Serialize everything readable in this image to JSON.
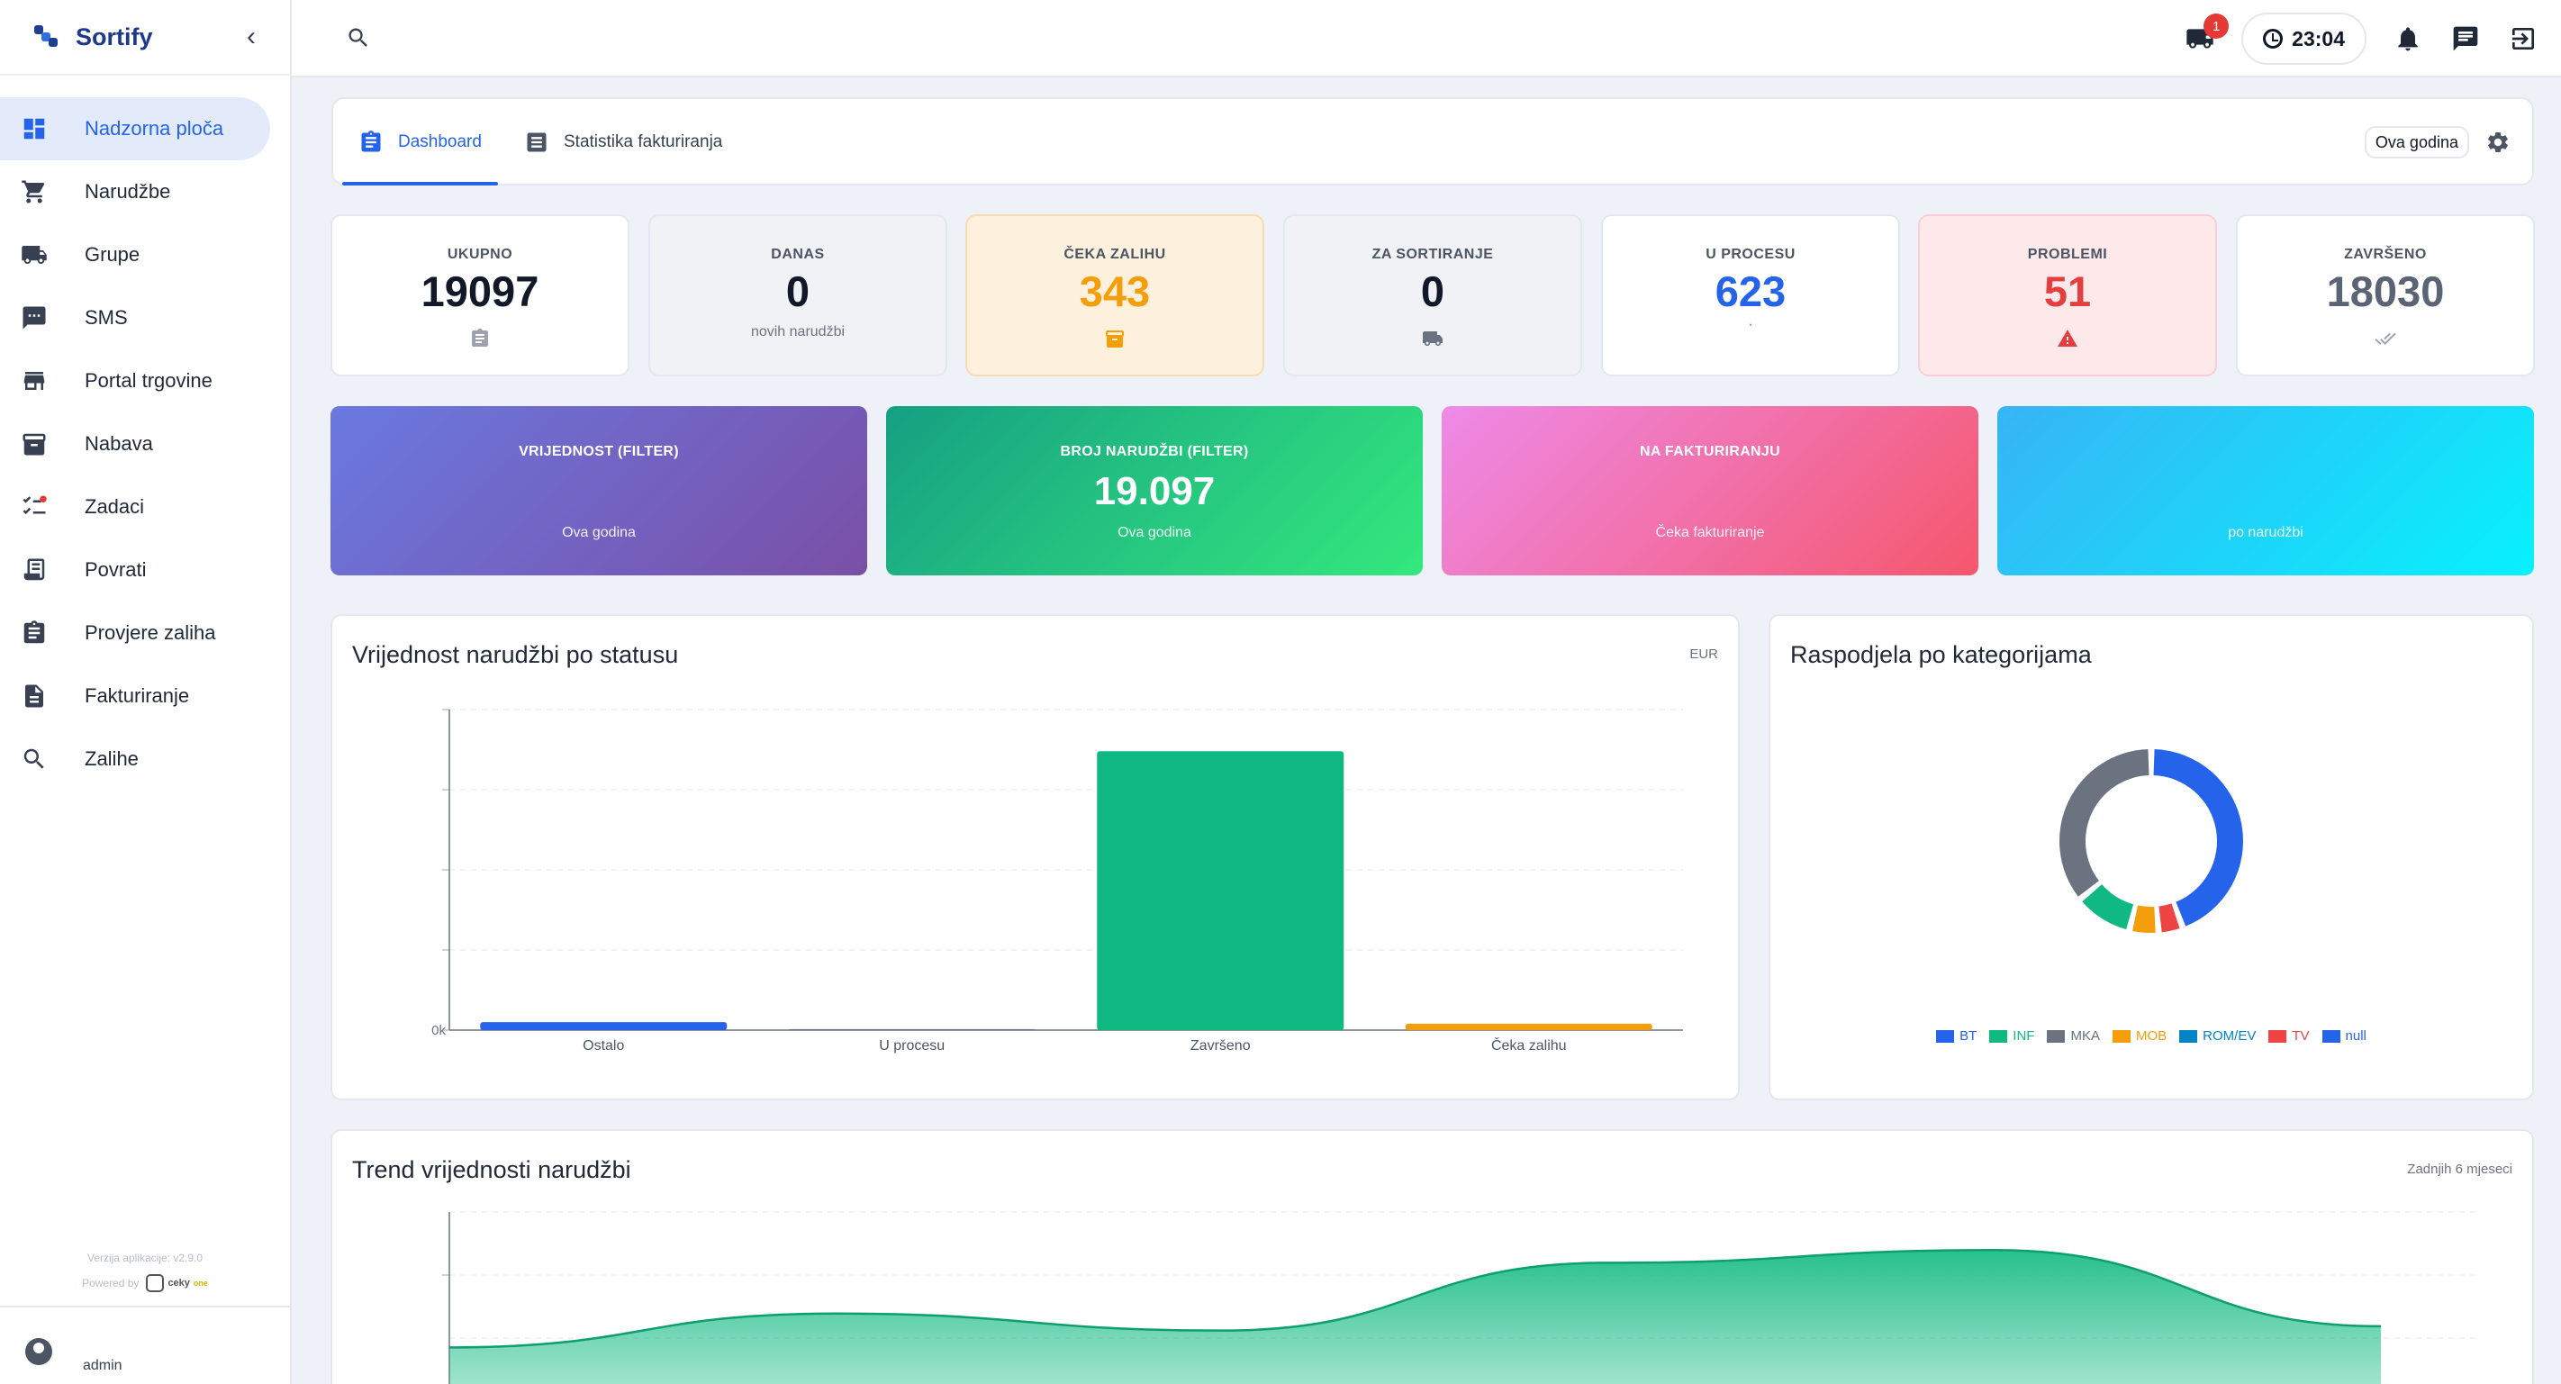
{
  "app": {
    "name": "Sortify",
    "version": "Verzija aplikacije: v2.9.0",
    "powered_by": "Powered by",
    "powered_brand": "ceky",
    "powered_brand_suffix": "one"
  },
  "sidebar": {
    "items": [
      {
        "label": "Nadzorna ploča",
        "icon": "dashboard-icon",
        "active": true
      },
      {
        "label": "Narudžbe",
        "icon": "cart-icon"
      },
      {
        "label": "Grupe",
        "icon": "truck-icon"
      },
      {
        "label": "SMS",
        "icon": "sms-icon"
      },
      {
        "label": "Portal trgovine",
        "icon": "store-icon"
      },
      {
        "label": "Nabava",
        "icon": "archive-icon"
      },
      {
        "label": "Zadaci",
        "icon": "tasks-icon"
      },
      {
        "label": "Povrati",
        "icon": "receipt-icon"
      },
      {
        "label": "Provjere zaliha",
        "icon": "clipboard-icon"
      },
      {
        "label": "Fakturiranje",
        "icon": "invoice-icon"
      },
      {
        "label": "Zalihe",
        "icon": "search-icon"
      }
    ],
    "user": "admin"
  },
  "topbar": {
    "truck_badge": "1",
    "time": "23:04"
  },
  "tabs": {
    "dashboard": "Dashboard",
    "billing_stats": "Statistika fakturiranja",
    "period": "Ova godina"
  },
  "stats": [
    {
      "label": "UKUPNO",
      "value": "19097",
      "sub": "",
      "color": "#111827",
      "bg": "#ffffff",
      "icon": "clipboard-icon"
    },
    {
      "label": "DANAS",
      "value": "0",
      "sub": "novih narudžbi",
      "color": "#111827",
      "bg": "#f0f2f6",
      "icon": ""
    },
    {
      "label": "ČEKA ZALIHU",
      "value": "343",
      "sub": "",
      "color": "#f59e0b",
      "bg": "#fdf0dc",
      "icon": "box-icon"
    },
    {
      "label": "ZA SORTIRANJE",
      "value": "0",
      "sub": "",
      "color": "#111827",
      "bg": "#f0f2f6",
      "icon": "truck-icon"
    },
    {
      "label": "U PROCESU",
      "value": "623",
      "sub": "·",
      "color": "#2563eb",
      "bg": "#ffffff",
      "icon": ""
    },
    {
      "label": "PROBLEMI",
      "value": "51",
      "sub": "",
      "color": "#e53e3e",
      "bg": "#fde8ea",
      "icon": "warning-icon"
    },
    {
      "label": "ZAVRŠENO",
      "value": "18030",
      "sub": "",
      "color": "#5b6474",
      "bg": "#ffffff",
      "icon": "double-check-icon"
    }
  ],
  "cards": [
    {
      "label": "VRIJEDNOST (FILTER)",
      "value": "",
      "sub": "Ova godina",
      "from": "#6a79e0",
      "to": "#7a4fa6"
    },
    {
      "label": "BROJ NARUDŽBI (FILTER)",
      "value": "19.097",
      "sub": "Ova godina",
      "from": "#16a083",
      "to": "#34e87d"
    },
    {
      "label": "NA FAKTURIRANJU",
      "value": "",
      "sub": "Čeka fakturiranje",
      "from": "#ee8ae8",
      "to": "#f5576c"
    },
    {
      "label": "",
      "value": "",
      "sub": "po narudžbi",
      "from": "#37b4f4",
      "to": "#07f1fd"
    }
  ],
  "bar_card": {
    "title": "Vrijednost narudžbi po statusu",
    "note": "EUR"
  },
  "donut_card": {
    "title": "Raspodjela po kategorijama"
  },
  "trend_card": {
    "title": "Trend vrijednosti narudžbi",
    "note": "Zadnjih 6 mjeseci"
  },
  "chart_data": [
    {
      "type": "bar",
      "title": "Vrijednost narudžbi po statusu",
      "categories": [
        "Ostalo",
        "U procesu",
        "Završeno",
        "Čeka zalihu"
      ],
      "values": [
        2.5,
        0.3,
        87,
        2
      ],
      "colors": [
        "#2563eb",
        "#6b7280",
        "#10b981",
        "#f59e0b"
      ],
      "y_tick_labels": [
        "0k"
      ],
      "ylim": [
        0,
        100
      ],
      "grid": true
    },
    {
      "type": "pie",
      "title": "Raspodjela po kategorijama",
      "labels": [
        "BT",
        "INF",
        "MKA",
        "MOB",
        "ROM/EV",
        "TV",
        "null"
      ],
      "values": [
        0,
        6,
        21,
        3,
        0,
        2.5,
        26
      ],
      "colors": [
        "#2563eb",
        "#10b981",
        "#6b7280",
        "#f59e0b",
        "#0284c7",
        "#ef4444",
        "#2563eb"
      ],
      "legend_position": "bottom"
    },
    {
      "type": "area",
      "title": "Trend vrijednosti narudžbi",
      "x": [
        "1",
        "2",
        "3",
        "4",
        "5",
        "6"
      ],
      "values": [
        68,
        76,
        72,
        88,
        91,
        73
      ],
      "ylim": [
        0,
        100
      ],
      "color": "#10b981",
      "grid": true
    }
  ]
}
